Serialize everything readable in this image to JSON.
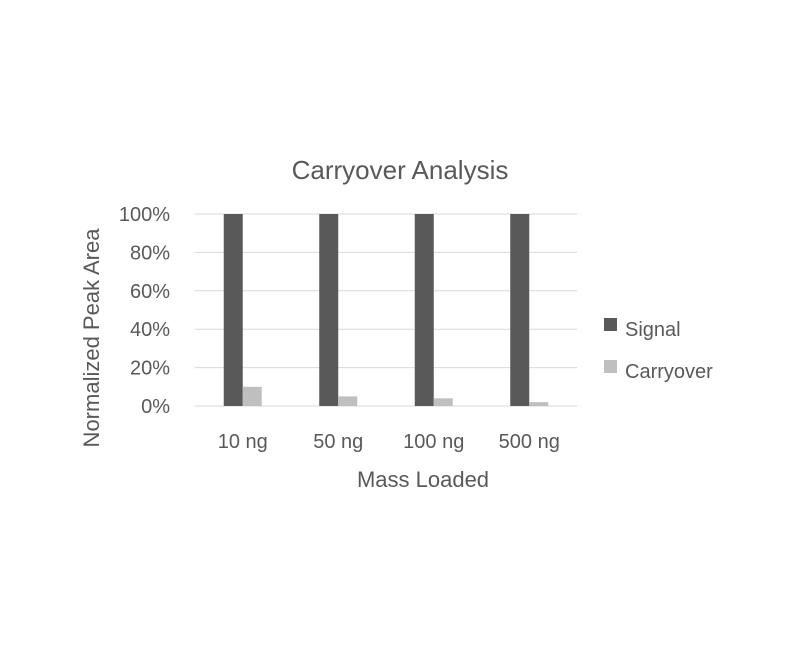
{
  "chart_data": {
    "type": "bar",
    "title": "Carryover Analysis",
    "xlabel": "Mass Loaded",
    "ylabel": "Normalized Peak Area",
    "categories": [
      "10 ng",
      "50 ng",
      "100 ng",
      "500 ng"
    ],
    "series": [
      {
        "name": "Signal",
        "color": "#595959",
        "values": [
          100,
          100,
          100,
          100
        ]
      },
      {
        "name": "Carryover",
        "color": "#bfbfbf",
        "values": [
          10,
          5,
          4,
          2
        ]
      }
    ],
    "ylim": [
      0,
      100
    ],
    "yticks": [
      0,
      20,
      40,
      60,
      80,
      100
    ],
    "ytick_labels": [
      "0%",
      "20%",
      "40%",
      "60%",
      "80%",
      "100%"
    ],
    "grid": true,
    "gridline_color": "#d9d9d9",
    "legend_position": "right"
  }
}
